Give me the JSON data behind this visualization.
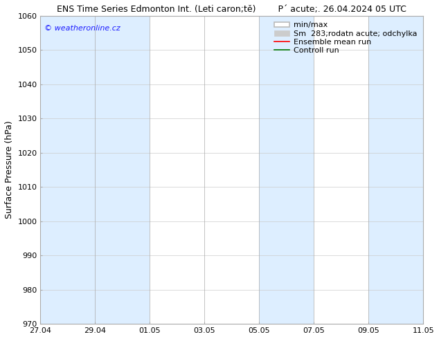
{
  "title_left": "ENS Time Series Edmonton Int. (Leti caron;tě)",
  "title_right": "P´ acute;. 26.04.2024 05 UTC",
  "ylabel": "Surface Pressure (hPa)",
  "ylim": [
    970,
    1060
  ],
  "yticks": [
    970,
    980,
    990,
    1000,
    1010,
    1020,
    1030,
    1040,
    1050,
    1060
  ],
  "xtick_labels": [
    "27.04",
    "29.04",
    "01.05",
    "03.05",
    "05.05",
    "07.05",
    "09.05",
    "11.05"
  ],
  "xtick_positions": [
    0,
    2,
    4,
    6,
    8,
    10,
    12,
    14
  ],
  "background_color": "#ffffff",
  "plot_bg_color": "#ffffff",
  "band_starts": [
    0,
    2,
    8,
    12
  ],
  "band_ends": [
    2,
    4,
    10,
    14
  ],
  "band_color": "#ddeeff",
  "watermark": "© weatheronline.cz",
  "watermark_color": "#1a1aff",
  "legend_labels": [
    "min/max",
    "Sm  283;rodatn acute; odchylka",
    "Ensemble mean run",
    "Controll run"
  ],
  "minmax_color": "#bbbbbb",
  "spread_color": "#cccccc",
  "ensemble_mean_color": "#ff0000",
  "control_run_color": "#007700",
  "font_size_title": 9,
  "font_size_axis": 9,
  "font_size_ticks": 8,
  "font_size_legend": 8,
  "font_size_watermark": 8
}
